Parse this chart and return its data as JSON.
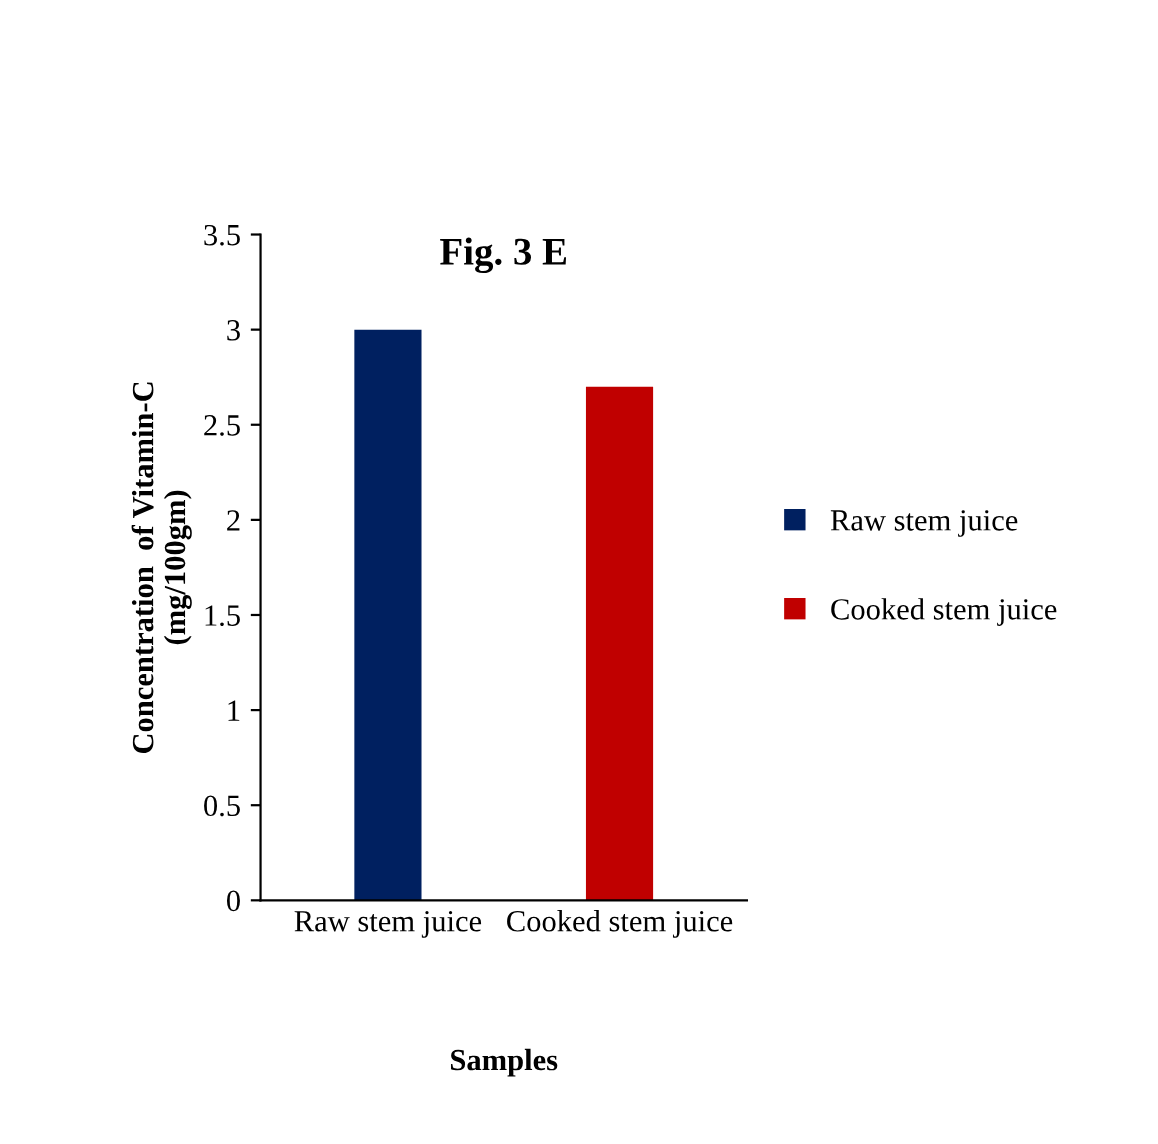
{
  "chart_data": {
    "type": "bar",
    "title": "Fig. 3 E",
    "xlabel": "Samples",
    "ylabel": "Concentration  of Vitamin-C\n(mg/100gm)",
    "categories": [
      "Raw stem juice",
      "Cooked stem juice"
    ],
    "series": [
      {
        "name": "Raw stem juice",
        "color": "#002060",
        "values": [
          3.0,
          null
        ]
      },
      {
        "name": "Cooked stem juice",
        "color": "#c00000",
        "values": [
          null,
          2.7
        ]
      }
    ],
    "ylim": [
      0,
      3.5
    ],
    "yticks": [
      0,
      {
        "value": 0.5,
        "label": "0.5"
      },
      1,
      1.5,
      2,
      2.5,
      3,
      3.5
    ],
    "grid": false,
    "legend": "right"
  }
}
